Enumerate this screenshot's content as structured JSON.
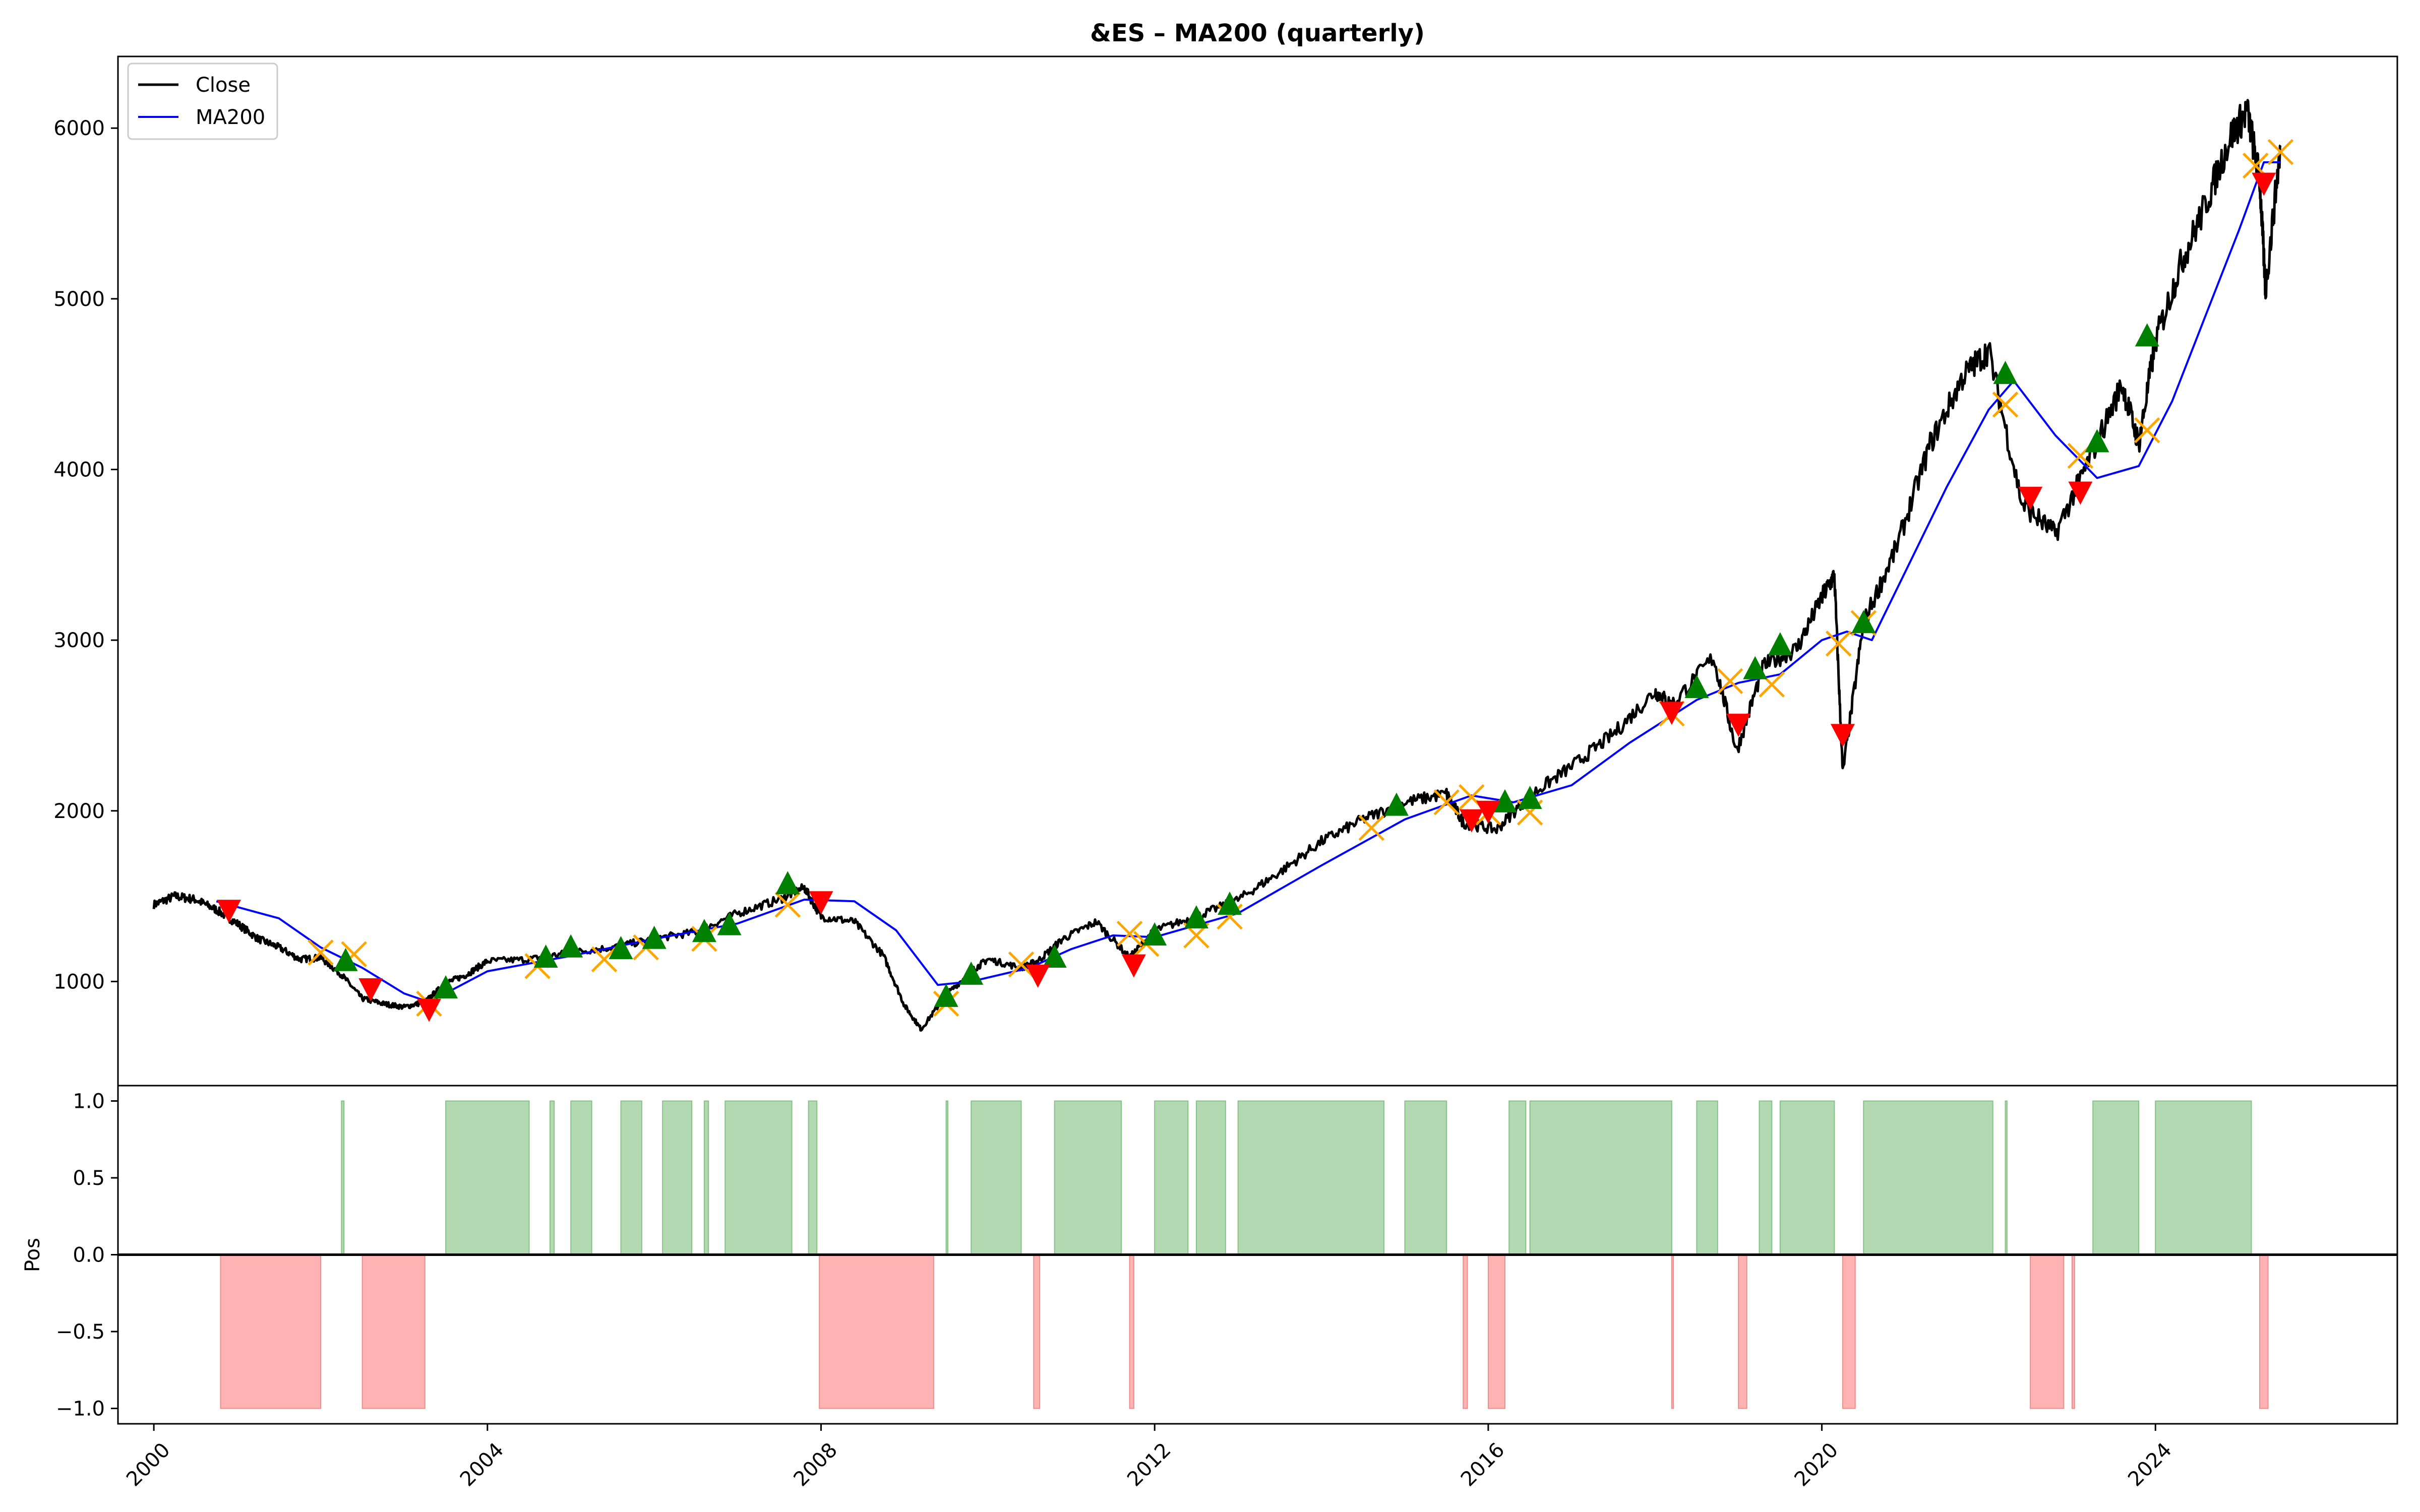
{
  "chart_data": [
    {
      "type": "line",
      "title": "&ES – MA200 (quarterly)",
      "xlabel": "",
      "ylabel": "",
      "xlim": [
        1999.57,
        2026.9
      ],
      "ylim": [
        390,
        6420
      ],
      "x_ticks": [
        "2000",
        "2004",
        "2008",
        "2012",
        "2016",
        "2020",
        "2024"
      ],
      "y_ticks": [
        1000,
        2000,
        3000,
        4000,
        5000,
        6000
      ],
      "grid": false,
      "legend": {
        "placement": "top-left",
        "entries": [
          "Close",
          "MA200"
        ]
      },
      "colors": {
        "close": "#000000",
        "ma200": "#0000ff",
        "buy": "#008000",
        "sell": "#ff0000",
        "exit": "#ffa500"
      },
      "series": [
        {
          "name": "Close",
          "x": [
            2000.0,
            2000.25,
            2000.5,
            2000.75,
            2001.0,
            2001.25,
            2001.5,
            2001.75,
            2002.0,
            2002.25,
            2002.5,
            2002.75,
            2003.0,
            2003.25,
            2003.5,
            2003.75,
            2004.0,
            2004.5,
            2005.0,
            2005.5,
            2006.0,
            2006.5,
            2007.0,
            2007.5,
            2007.8,
            2008.0,
            2008.4,
            2008.75,
            2009.0,
            2009.2,
            2009.5,
            2009.8,
            2010.0,
            2010.4,
            2010.6,
            2010.9,
            2011.3,
            2011.7,
            2012.0,
            2012.5,
            2013.0,
            2013.5,
            2014.0,
            2014.5,
            2015.0,
            2015.5,
            2015.7,
            2016.1,
            2016.5,
            2017.0,
            2017.5,
            2018.0,
            2018.2,
            2018.7,
            2018.98,
            2019.3,
            2019.7,
            2020.0,
            2020.15,
            2020.25,
            2020.5,
            2020.9,
            2021.3,
            2021.7,
            2022.0,
            2022.4,
            2022.8,
            2023.2,
            2023.6,
            2023.8,
            2024.0,
            2024.3,
            2024.6,
            2024.9,
            2025.1,
            2025.25,
            2025.32,
            2025.5
          ],
          "values": [
            1450,
            1500,
            1480,
            1420,
            1340,
            1250,
            1200,
            1130,
            1140,
            1040,
            900,
            870,
            850,
            880,
            990,
            1040,
            1120,
            1130,
            1170,
            1200,
            1250,
            1290,
            1400,
            1480,
            1550,
            1380,
            1350,
            1150,
            860,
            720,
            920,
            1060,
            1130,
            1080,
            1120,
            1250,
            1350,
            1140,
            1300,
            1380,
            1480,
            1640,
            1820,
            1950,
            2050,
            2100,
            1930,
            1890,
            2090,
            2260,
            2450,
            2700,
            2620,
            2900,
            2350,
            2850,
            2950,
            3250,
            3380,
            2220,
            3100,
            3550,
            4150,
            4550,
            4700,
            3800,
            3620,
            4050,
            4500,
            4150,
            4750,
            5200,
            5550,
            5950,
            6100,
            5700,
            5050,
            5900
          ]
        },
        {
          "name": "MA200",
          "x": [
            2000.75,
            2001.5,
            2002.0,
            2002.5,
            2003.0,
            2003.3,
            2004.0,
            2005.0,
            2006.0,
            2007.0,
            2007.8,
            2008.4,
            2008.9,
            2009.4,
            2009.8,
            2010.5,
            2011.0,
            2011.5,
            2012.0,
            2012.5,
            2013.0,
            2014.0,
            2015.0,
            2015.8,
            2016.3,
            2017.0,
            2017.7,
            2018.5,
            2019.0,
            2019.5,
            2020.0,
            2020.3,
            2020.6,
            2021.0,
            2021.5,
            2022.0,
            2022.3,
            2022.8,
            2023.3,
            2023.8,
            2024.2,
            2024.6,
            2025.0,
            2025.3,
            2025.5
          ],
          "values": [
            1470,
            1370,
            1200,
            1080,
            930,
            880,
            1060,
            1150,
            1250,
            1340,
            1480,
            1470,
            1300,
            980,
            1000,
            1080,
            1190,
            1270,
            1260,
            1330,
            1400,
            1680,
            1950,
            2090,
            2050,
            2150,
            2400,
            2650,
            2750,
            2800,
            3000,
            3050,
            3000,
            3400,
            3900,
            4350,
            4520,
            4200,
            3950,
            4020,
            4400,
            4900,
            5400,
            5800,
            5800
          ]
        }
      ],
      "markers": {
        "buy": [
          [
            2002.3,
            1120
          ],
          [
            2003.5,
            960
          ],
          [
            2004.7,
            1140
          ],
          [
            2005.0,
            1200
          ],
          [
            2005.6,
            1190
          ],
          [
            2006.0,
            1250
          ],
          [
            2006.6,
            1290
          ],
          [
            2006.9,
            1330
          ],
          [
            2007.6,
            1570
          ],
          [
            2009.5,
            910
          ],
          [
            2009.8,
            1040
          ],
          [
            2010.8,
            1140
          ],
          [
            2012.0,
            1270
          ],
          [
            2012.5,
            1370
          ],
          [
            2012.9,
            1450
          ],
          [
            2014.9,
            2030
          ],
          [
            2016.2,
            2050
          ],
          [
            2016.5,
            2070
          ],
          [
            2018.5,
            2720
          ],
          [
            2019.2,
            2830
          ],
          [
            2019.5,
            2970
          ],
          [
            2020.5,
            3100
          ],
          [
            2022.2,
            4560
          ],
          [
            2023.3,
            4160
          ],
          [
            2023.9,
            4780
          ]
        ],
        "sell": [
          [
            2000.9,
            1420
          ],
          [
            2002.6,
            960
          ],
          [
            2003.3,
            840
          ],
          [
            2008.0,
            1470
          ],
          [
            2010.6,
            1040
          ],
          [
            2011.75,
            1100
          ],
          [
            2015.8,
            1950
          ],
          [
            2016.0,
            2000
          ],
          [
            2018.2,
            2580
          ],
          [
            2019.0,
            2510
          ],
          [
            2020.25,
            2450
          ],
          [
            2022.5,
            3840
          ],
          [
            2023.1,
            3870
          ],
          [
            2025.3,
            5680
          ]
        ],
        "exit": [
          [
            2002.0,
            1170
          ],
          [
            2002.4,
            1160
          ],
          [
            2003.3,
            870
          ],
          [
            2004.6,
            1090
          ],
          [
            2005.4,
            1130
          ],
          [
            2005.9,
            1200
          ],
          [
            2006.6,
            1250
          ],
          [
            2007.6,
            1450
          ],
          [
            2009.5,
            870
          ],
          [
            2010.4,
            1100
          ],
          [
            2011.7,
            1280
          ],
          [
            2011.9,
            1220
          ],
          [
            2012.5,
            1270
          ],
          [
            2012.9,
            1380
          ],
          [
            2014.6,
            1900
          ],
          [
            2015.5,
            2050
          ],
          [
            2015.8,
            2080
          ],
          [
            2016.0,
            1990
          ],
          [
            2016.5,
            1990
          ],
          [
            2018.2,
            2570
          ],
          [
            2018.9,
            2760
          ],
          [
            2019.4,
            2740
          ],
          [
            2020.2,
            2980
          ],
          [
            2020.5,
            3100
          ],
          [
            2022.2,
            4380
          ],
          [
            2023.1,
            4080
          ],
          [
            2023.9,
            4230
          ],
          [
            2025.2,
            5780
          ],
          [
            2025.5,
            5860
          ]
        ]
      }
    },
    {
      "type": "area",
      "title": "",
      "xlabel": "",
      "ylabel": "Pos",
      "xlim": [
        1999.57,
        2026.9
      ],
      "ylim": [
        -1.1,
        1.1
      ],
      "y_ticks": [
        "1.0",
        "0.5",
        "0.0",
        "−0.5",
        "−1.0"
      ],
      "x_ticks": [
        "2000",
        "2004",
        "2008",
        "2012",
        "2016",
        "2020",
        "2024"
      ],
      "colors": {
        "long": "#b3d9b3",
        "long_edge": "#85c285",
        "short": "#ffb3b3",
        "short_edge": "#f08c8c",
        "zero_line": "#000000"
      },
      "long_periods": [
        [
          2002.25,
          2002.28
        ],
        [
          2003.5,
          2004.5
        ],
        [
          2004.75,
          2004.8
        ],
        [
          2005.0,
          2005.25
        ],
        [
          2005.6,
          2005.85
        ],
        [
          2006.1,
          2006.45
        ],
        [
          2006.6,
          2006.65
        ],
        [
          2006.85,
          2007.65
        ],
        [
          2007.85,
          2007.95
        ],
        [
          2009.5,
          2009.52
        ],
        [
          2009.8,
          2010.4
        ],
        [
          2010.8,
          2011.6
        ],
        [
          2012.0,
          2012.4
        ],
        [
          2012.5,
          2012.85
        ],
        [
          2013.0,
          2014.75
        ],
        [
          2015.0,
          2015.5
        ],
        [
          2016.25,
          2016.45
        ],
        [
          2016.5,
          2018.2
        ],
        [
          2018.5,
          2018.75
        ],
        [
          2019.25,
          2019.4
        ],
        [
          2019.5,
          2020.15
        ],
        [
          2020.5,
          2022.05
        ],
        [
          2022.2,
          2022.22
        ],
        [
          2023.25,
          2023.8
        ],
        [
          2024.0,
          2025.15
        ]
      ],
      "short_periods": [
        [
          2000.8,
          2002.0
        ],
        [
          2002.5,
          2003.25
        ],
        [
          2007.98,
          2009.35
        ],
        [
          2010.55,
          2010.62
        ],
        [
          2011.7,
          2011.75
        ],
        [
          2015.7,
          2015.75
        ],
        [
          2016.0,
          2016.2
        ],
        [
          2018.2,
          2018.22
        ],
        [
          2019.0,
          2019.1
        ],
        [
          2020.25,
          2020.4
        ],
        [
          2022.5,
          2022.9
        ],
        [
          2023.0,
          2023.03
        ],
        [
          2025.25,
          2025.35
        ]
      ]
    }
  ]
}
